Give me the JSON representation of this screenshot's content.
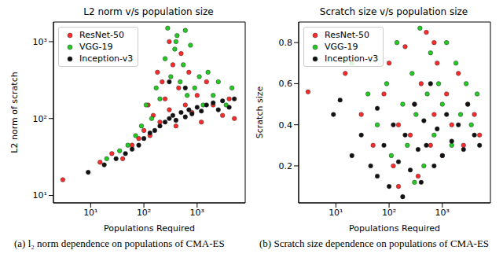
{
  "chart_data": [
    {
      "type": "scatter",
      "title": "L2 norm v/s population size",
      "x_label": "Populations Required",
      "y_label": "L2 norm of scratch",
      "caption": "(a) l₂ norm dependence on populations of CMA-ES",
      "log": true,
      "grid": false,
      "legend": "upper left",
      "xlim": [
        2,
        8000
      ],
      "xticks": [
        {
          "value": 10,
          "label": "10¹"
        },
        {
          "value": 100,
          "label": "10²"
        },
        {
          "value": 1000,
          "label": "10³"
        }
      ],
      "ylim": [
        8,
        1800
      ],
      "yticks": [
        {
          "value": 10,
          "label": "10¹"
        },
        {
          "value": 100,
          "label": "10²"
        },
        {
          "value": 1000,
          "label": "10³"
        }
      ],
      "series": [
        {
          "name": "ResNet-50",
          "color": "#ff2a2a",
          "marker": "o",
          "x": [
            3,
            15,
            25,
            40,
            60,
            80,
            100,
            130,
            150,
            200,
            220,
            250,
            300,
            350,
            400,
            450,
            500,
            600,
            700,
            800,
            1000,
            1200,
            1500,
            2000,
            3000,
            4000,
            5000,
            300,
            180,
            120
          ],
          "values": [
            16,
            27,
            35,
            30,
            45,
            55,
            70,
            60,
            110,
            90,
            300,
            180,
            130,
            500,
            80,
            250,
            700,
            150,
            400,
            120,
            200,
            90,
            300,
            150,
            110,
            180,
            100,
            1000,
            400,
            150
          ]
        },
        {
          "name": "VGG-19",
          "color": "#22cc22",
          "marker": "o",
          "x": [
            20,
            35,
            50,
            70,
            90,
            110,
            140,
            170,
            200,
            250,
            280,
            320,
            380,
            420,
            480,
            550,
            650,
            750,
            900,
            1100,
            1300,
            1600,
            2000,
            2500,
            3500,
            4500,
            400,
            600
          ],
          "values": [
            30,
            38,
            45,
            60,
            80,
            150,
            100,
            250,
            180,
            600,
            1500,
            350,
            800,
            1200,
            300,
            500,
            200,
            900,
            250,
            350,
            150,
            400,
            200,
            300,
            150,
            250,
            1000,
            1400
          ]
        },
        {
          "name": "Inception-v3",
          "color": "#111111",
          "marker": "o",
          "x": [
            9,
            18,
            30,
            45,
            60,
            80,
            100,
            130,
            160,
            200,
            250,
            300,
            350,
            400,
            500,
            600,
            700,
            800,
            1000,
            1200,
            1500,
            2000,
            2500,
            3000,
            4000,
            5000,
            300,
            600
          ],
          "values": [
            20,
            25,
            30,
            35,
            40,
            45,
            55,
            65,
            70,
            80,
            90,
            100,
            110,
            95,
            120,
            105,
            130,
            115,
            140,
            125,
            150,
            160,
            130,
            170,
            140,
            180,
            300,
            250
          ]
        }
      ]
    },
    {
      "type": "scatter",
      "title": "Scratch size v/s population size",
      "x_label": "Populations Required",
      "y_label": "Scratch size",
      "caption": "(b) Scratch size dependence on populations of CMA-ES",
      "log": "x",
      "grid": false,
      "legend": "upper left",
      "xlim": [
        2,
        8000
      ],
      "xticks": [
        {
          "value": 10,
          "label": "10¹"
        },
        {
          "value": 100,
          "label": "10²"
        },
        {
          "value": 1000,
          "label": "10³"
        }
      ],
      "ylim": [
        0.02,
        0.9
      ],
      "yticks": [
        0.2,
        0.4,
        0.6,
        0.8
      ],
      "series": [
        {
          "name": "ResNet-50",
          "color": "#ff2a2a",
          "marker": "o",
          "x": [
            3,
            15,
            30,
            50,
            80,
            100,
            120,
            150,
            200,
            250,
            300,
            350,
            400,
            500,
            600,
            700,
            800,
            1000,
            1200,
            1500,
            2000,
            2500,
            3000,
            4000,
            5000,
            150,
            700
          ],
          "values": [
            0.56,
            0.65,
            0.45,
            0.3,
            0.55,
            0.7,
            0.2,
            0.4,
            0.78,
            0.35,
            0.5,
            0.15,
            0.6,
            0.85,
            0.3,
            0.45,
            0.7,
            0.25,
            0.55,
            0.4,
            0.65,
            0.3,
            0.5,
            0.45,
            0.35,
            0.1,
            0.8
          ]
        },
        {
          "name": "VGG-19",
          "color": "#22cc22",
          "marker": "o",
          "x": [
            20,
            40,
            60,
            90,
            110,
            140,
            180,
            220,
            270,
            320,
            380,
            450,
            520,
            600,
            700,
            850,
            1000,
            1200,
            1500,
            1800,
            2200,
            2800,
            3500,
            4500,
            300
          ],
          "values": [
            0.7,
            0.55,
            0.4,
            0.6,
            0.25,
            0.8,
            0.5,
            0.3,
            0.65,
            0.45,
            0.87,
            0.2,
            0.55,
            0.75,
            0.35,
            0.6,
            0.5,
            0.8,
            0.3,
            0.7,
            0.45,
            0.6,
            0.4,
            0.55,
            0.12
          ]
        },
        {
          "name": "Inception-v3",
          "color": "#111111",
          "marker": "o",
          "x": [
            9,
            12,
            20,
            30,
            45,
            60,
            80,
            100,
            120,
            150,
            180,
            200,
            250,
            300,
            350,
            400,
            450,
            500,
            600,
            700,
            800,
            1000,
            1200,
            1500,
            2000,
            2500,
            3000,
            4000,
            5000,
            60
          ],
          "values": [
            0.45,
            0.52,
            0.25,
            0.35,
            0.2,
            0.15,
            0.3,
            0.1,
            0.4,
            0.22,
            0.05,
            0.35,
            0.18,
            0.5,
            0.28,
            0.12,
            0.42,
            0.3,
            0.6,
            0.2,
            0.38,
            0.25,
            0.45,
            0.32,
            0.4,
            0.28,
            0.5,
            0.35,
            0.3,
            0.48
          ]
        }
      ]
    }
  ]
}
